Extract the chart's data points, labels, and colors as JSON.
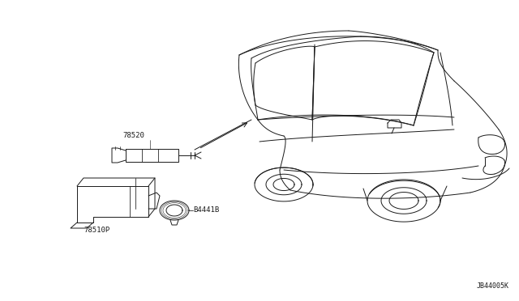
{
  "bg_color": "#ffffff",
  "fig_width": 6.4,
  "fig_height": 3.72,
  "diagram_code": "JB44005K",
  "label_78520": [
    0.265,
    0.638
  ],
  "label_78510P": [
    0.105,
    0.365
  ],
  "label_B4441B": [
    0.285,
    0.422
  ],
  "label_fontsize": 6.5,
  "line_color": "#1a1a1a",
  "line_width": 0.7
}
